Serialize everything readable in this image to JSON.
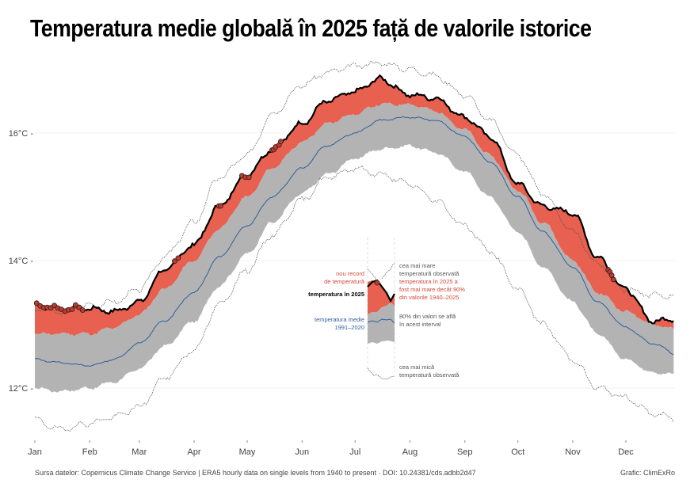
{
  "title": "Temperatura medie globală în 2025 față de valorile istorice",
  "footer": {
    "source": "Sursa datelor: Copernicus Climate Change Service | ERA5 hourly data on single levels from 1940 to present · DOI: 10.24381/cds.adbb2d47",
    "credit": "Grafic: ClimExRo"
  },
  "colors": {
    "band_80": "#b3b3b3",
    "above_90": "#e8604f",
    "line_2025": "#000000",
    "mean_line": "#2f5f9e",
    "record_marker": "#c0392b",
    "extreme_lines": "#555555",
    "ann_red": "#d9473a",
    "ann_blue": "#2f5f9e",
    "ann_gray": "#555555"
  },
  "chart_data": {
    "type": "area",
    "title": "Temperatura medie globală în 2025 față de valorile istorice",
    "xlabel": "",
    "ylabel": "",
    "x_unit": "day of year",
    "ylim": [
      11.3,
      17.3
    ],
    "xlim": [
      1,
      366
    ],
    "yticks": [
      {
        "value": 12,
        "label": "12°C"
      },
      {
        "value": 14,
        "label": "14°C"
      },
      {
        "value": 16,
        "label": "16°C"
      }
    ],
    "xticks": [
      {
        "day": 1,
        "label": "Jan"
      },
      {
        "day": 32,
        "label": "Feb"
      },
      {
        "day": 60,
        "label": "Mar"
      },
      {
        "day": 91,
        "label": "Apr"
      },
      {
        "day": 121,
        "label": "May"
      },
      {
        "day": 152,
        "label": "Jun"
      },
      {
        "day": 182,
        "label": "Jul"
      },
      {
        "day": 213,
        "label": "Aug"
      },
      {
        "day": 244,
        "label": "Sep"
      },
      {
        "day": 274,
        "label": "Oct"
      },
      {
        "day": 305,
        "label": "Nov"
      },
      {
        "day": 335,
        "label": "Dec"
      }
    ],
    "grid": true,
    "x": [
      1,
      15,
      32,
      46,
      60,
      74,
      91,
      105,
      121,
      135,
      152,
      166,
      182,
      196,
      213,
      227,
      244,
      258,
      274,
      288,
      305,
      319,
      335,
      350,
      366
    ],
    "series": [
      {
        "name": "cea mai mare temperatură observată",
        "style": "dotted",
        "values": [
          13.25,
          13.2,
          13.3,
          13.35,
          13.55,
          14.05,
          14.6,
          15.3,
          15.65,
          16.3,
          16.75,
          16.95,
          17.05,
          17.1,
          17.0,
          16.9,
          16.6,
          16.2,
          15.65,
          15.05,
          14.45,
          13.95,
          13.55,
          13.45,
          13.45
        ]
      },
      {
        "name": "temperatura în 2025",
        "style": "thick",
        "values": [
          13.3,
          13.25,
          13.25,
          13.2,
          13.35,
          13.85,
          14.25,
          14.85,
          15.35,
          15.75,
          16.15,
          16.5,
          16.65,
          16.85,
          16.6,
          16.55,
          16.25,
          15.95,
          15.2,
          14.85,
          14.75,
          14.05,
          13.55,
          13.05,
          13.1
        ]
      },
      {
        "name": "percentila 90",
        "style": "band-top",
        "values": [
          12.85,
          12.85,
          12.85,
          12.95,
          13.15,
          13.55,
          14.0,
          14.5,
          15.0,
          15.45,
          15.85,
          16.15,
          16.3,
          16.45,
          16.45,
          16.35,
          16.05,
          15.65,
          15.1,
          14.6,
          14.0,
          13.5,
          13.2,
          13.0,
          12.9
        ]
      },
      {
        "name": "temperatura medie 1991–2020",
        "style": "mean",
        "values": [
          12.45,
          12.4,
          12.35,
          12.45,
          12.7,
          13.05,
          13.5,
          14.05,
          14.55,
          15.0,
          15.45,
          15.8,
          16.0,
          16.2,
          16.25,
          16.2,
          15.95,
          15.55,
          15.0,
          14.45,
          13.9,
          13.35,
          12.95,
          12.7,
          12.5
        ]
      },
      {
        "name": "percentila 10",
        "style": "band-bottom",
        "values": [
          12.0,
          11.95,
          12.0,
          12.1,
          12.3,
          12.65,
          13.05,
          13.6,
          14.1,
          14.6,
          15.05,
          15.35,
          15.6,
          15.75,
          15.8,
          15.7,
          15.4,
          15.0,
          14.45,
          13.9,
          13.35,
          12.85,
          12.45,
          12.25,
          12.2
        ]
      },
      {
        "name": "cea mai mică temperatură observată",
        "style": "dotted",
        "values": [
          11.5,
          11.35,
          11.45,
          11.55,
          11.7,
          12.15,
          12.6,
          13.3,
          13.85,
          14.4,
          14.95,
          15.3,
          15.45,
          15.35,
          15.2,
          14.95,
          14.55,
          14.15,
          13.55,
          13.0,
          12.45,
          12.0,
          11.85,
          11.6,
          11.5
        ]
      }
    ],
    "record_days": [
      2,
      4,
      6,
      8,
      10,
      12,
      14,
      16,
      18,
      20,
      22,
      24,
      26,
      28,
      80,
      82,
      105,
      106,
      118,
      120,
      122,
      135,
      136,
      137,
      139,
      140,
      325,
      326,
      327,
      328
    ],
    "legend_inset": {
      "labels": {
        "record": "nou record\nde temperatură",
        "line_2025": "temperatura în 2025",
        "mean": "temperatura medie\n1991–2020",
        "max": "cea mai mare\ntemperatură observată",
        "above90": "temperatura în 2025 a\nfost mai mare decât 90%\ndin valorile 1940–2025",
        "band": "80% din valori se află\nîn acest interval",
        "min": "cea mai mică\ntemperatură observată"
      }
    }
  }
}
